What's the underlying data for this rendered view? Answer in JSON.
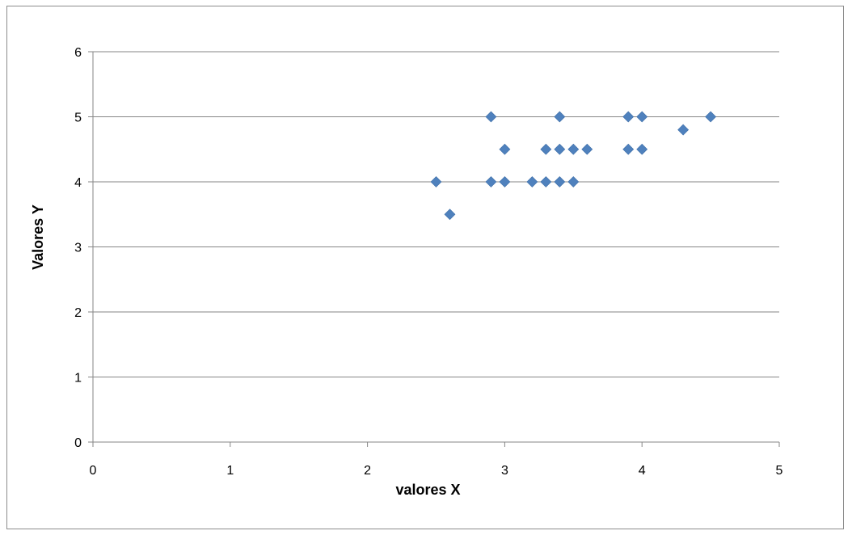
{
  "chart_data": {
    "type": "scatter",
    "title": "",
    "xlabel": "valores X",
    "ylabel": "Valores Y",
    "xlim": [
      0,
      5
    ],
    "ylim": [
      0,
      6
    ],
    "x_ticks": [
      "0",
      "1",
      "2",
      "3",
      "4",
      "5"
    ],
    "y_ticks": [
      "0",
      "1",
      "2",
      "3",
      "4",
      "5",
      "6"
    ],
    "grid": "horizontal major gridlines",
    "legend": "none",
    "series": [
      {
        "marker": "diamond",
        "color": "#4F81BD",
        "points": [
          {
            "x": 2.5,
            "y": 4.0
          },
          {
            "x": 2.6,
            "y": 3.5
          },
          {
            "x": 2.9,
            "y": 5.0
          },
          {
            "x": 2.9,
            "y": 4.0
          },
          {
            "x": 3.0,
            "y": 4.5
          },
          {
            "x": 3.0,
            "y": 4.0
          },
          {
            "x": 3.2,
            "y": 4.0
          },
          {
            "x": 3.3,
            "y": 4.5
          },
          {
            "x": 3.3,
            "y": 4.0
          },
          {
            "x": 3.4,
            "y": 5.0
          },
          {
            "x": 3.4,
            "y": 4.5
          },
          {
            "x": 3.4,
            "y": 4.0
          },
          {
            "x": 3.5,
            "y": 4.5
          },
          {
            "x": 3.5,
            "y": 4.0
          },
          {
            "x": 3.6,
            "y": 4.5
          },
          {
            "x": 3.9,
            "y": 5.0
          },
          {
            "x": 3.9,
            "y": 4.5
          },
          {
            "x": 4.0,
            "y": 5.0
          },
          {
            "x": 4.0,
            "y": 4.5
          },
          {
            "x": 4.3,
            "y": 4.8
          },
          {
            "x": 4.5,
            "y": 5.0
          }
        ]
      }
    ],
    "colors": {
      "gridline": "#868686",
      "axis": "#868686",
      "marker": "#4F81BD",
      "frame": "#8c8c8c"
    }
  }
}
